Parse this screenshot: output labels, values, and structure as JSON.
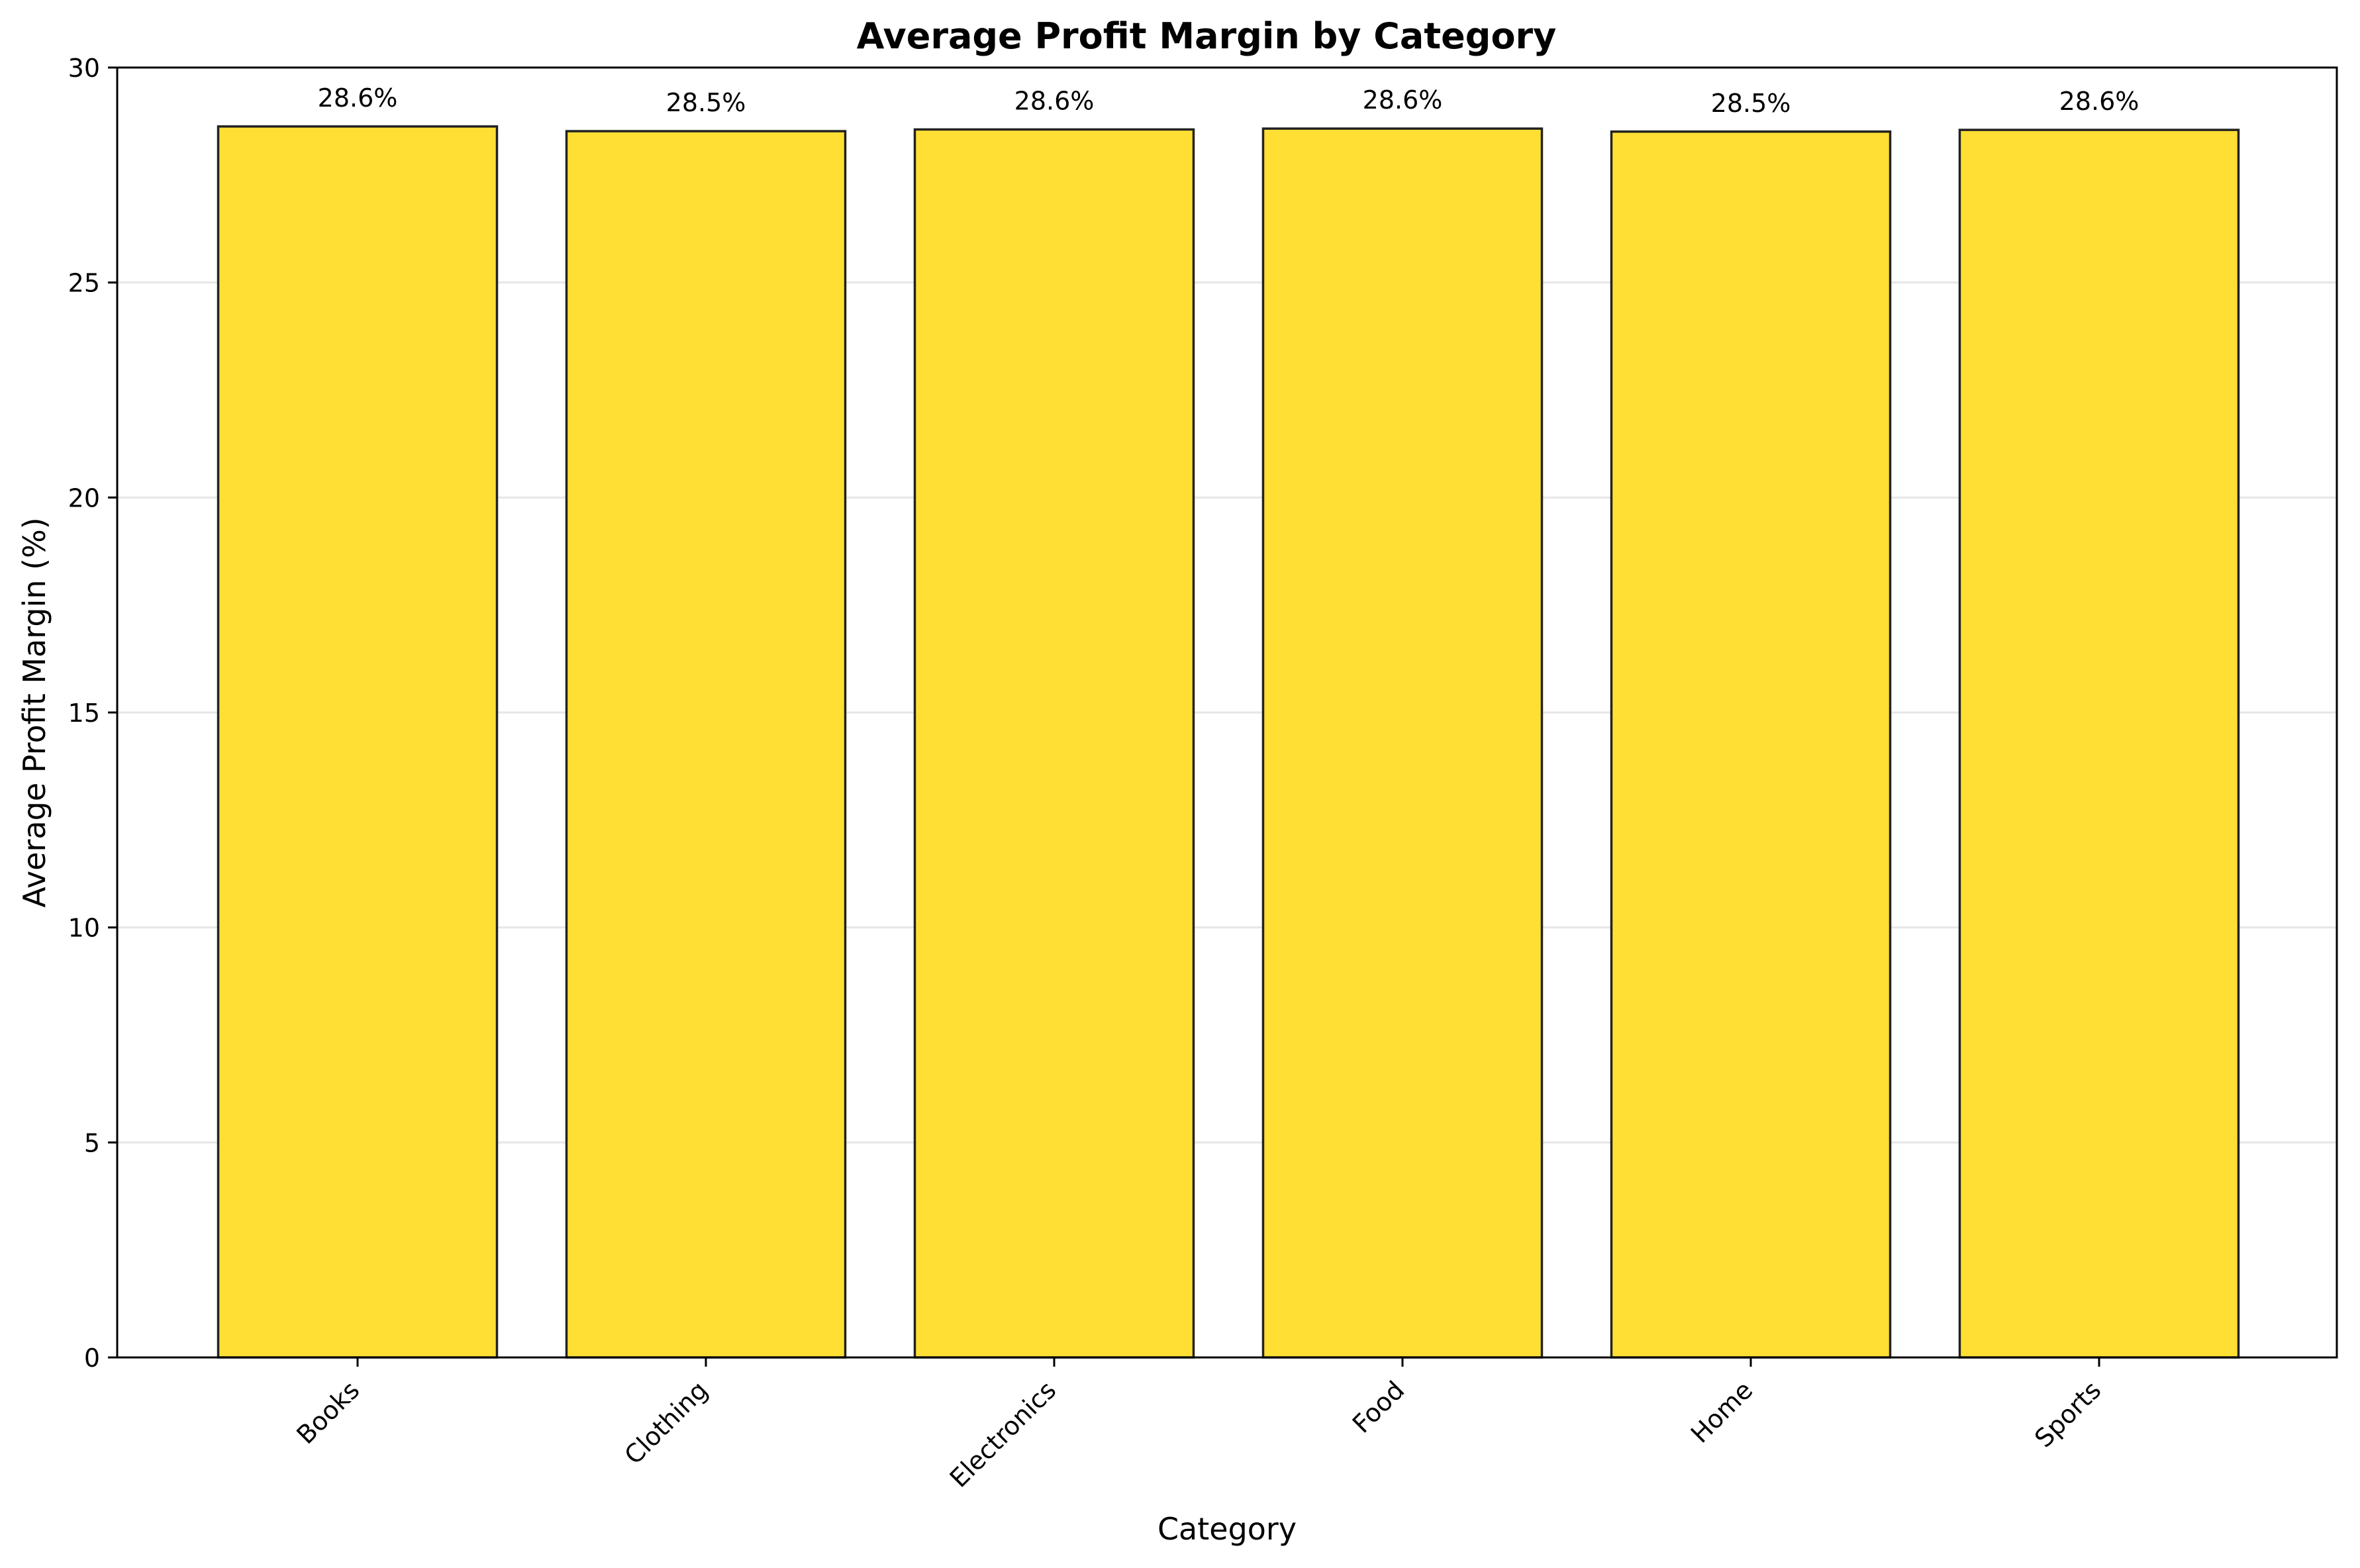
{
  "chart_data": {
    "type": "bar",
    "title": "Average Profit Margin by Category",
    "xlabel": "Category",
    "ylabel": "Average Profit Margin (%)",
    "categories": [
      "Books",
      "Clothing",
      "Electronics",
      "Food",
      "Home",
      "Sports"
    ],
    "values": [
      28.63,
      28.52,
      28.56,
      28.58,
      28.51,
      28.55
    ],
    "value_labels": [
      "28.6%",
      "28.5%",
      "28.6%",
      "28.6%",
      "28.5%",
      "28.6%"
    ],
    "ylim": [
      0,
      30
    ],
    "yticks": [
      0,
      5,
      10,
      15,
      20,
      25,
      30
    ],
    "grid": "y",
    "legend": "none",
    "colors": {
      "bar_fill": "#FFDF33",
      "bar_edge": "#222222",
      "grid": "#e6e6e6",
      "axes": "#000000"
    }
  }
}
